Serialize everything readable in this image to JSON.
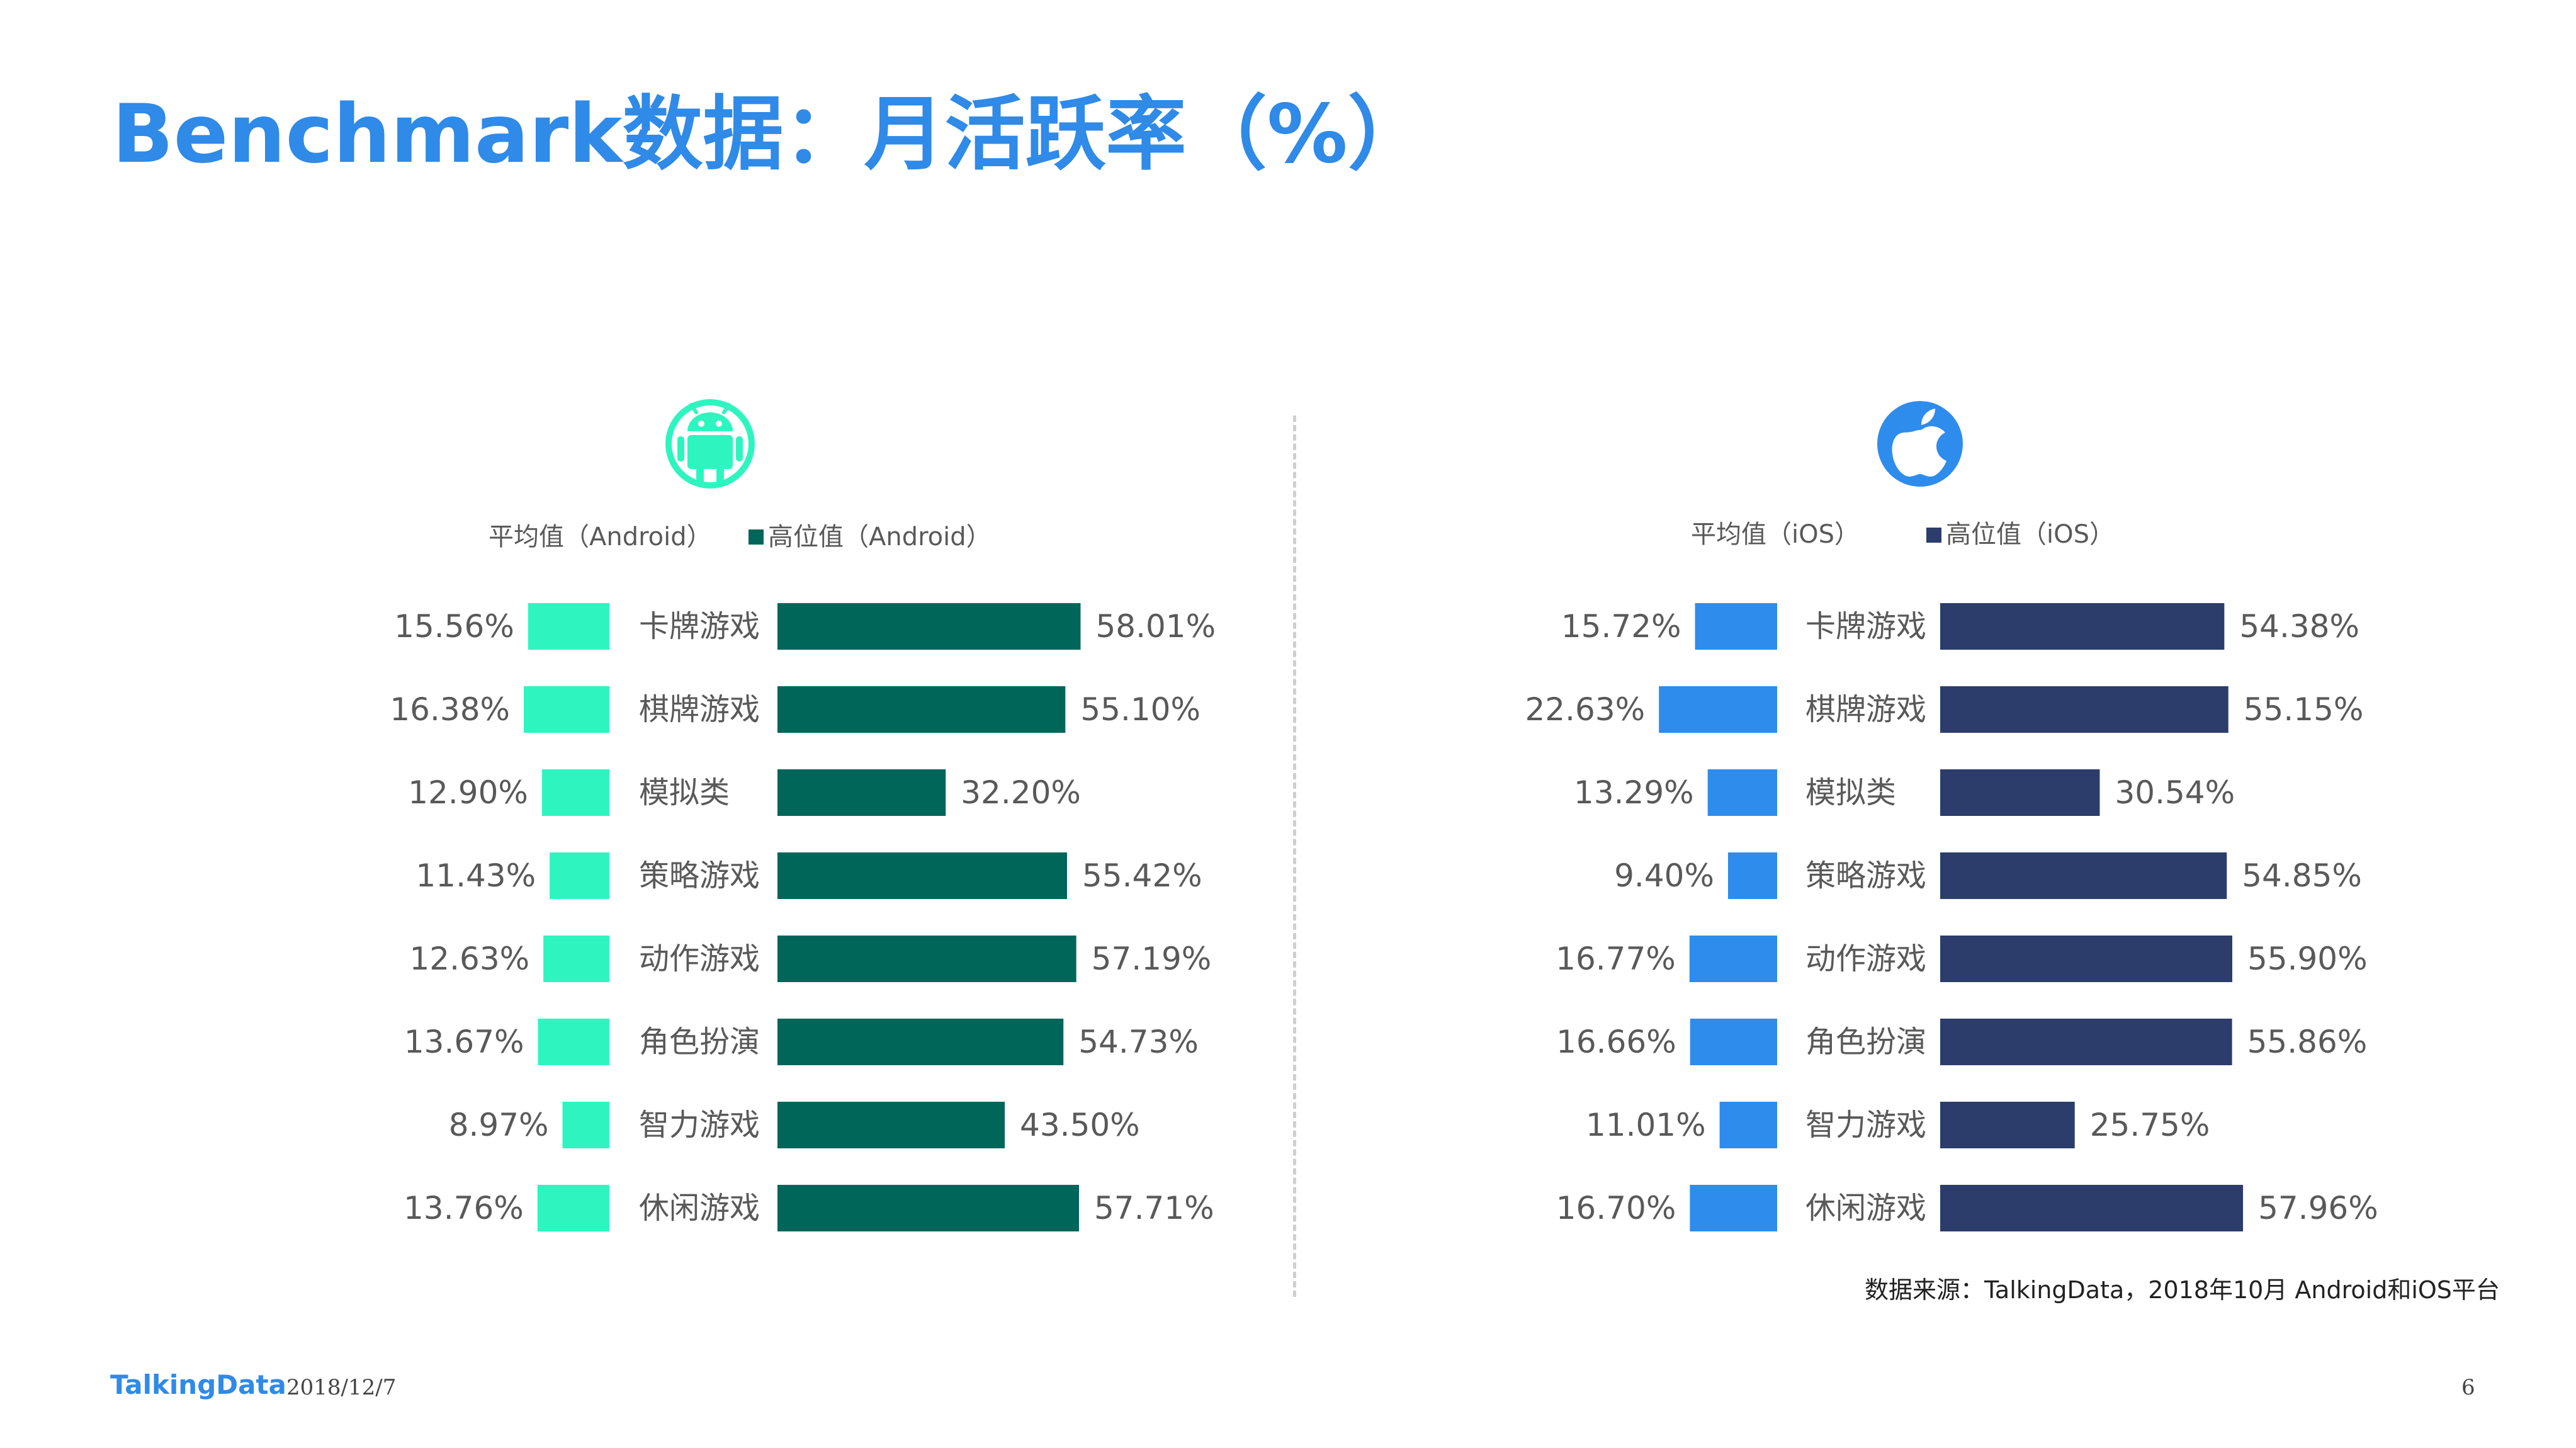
{
  "title": "Benchmark数据：月活跃率（%）",
  "source": "数据来源：TalkingData，2018年10月 Android和iOS平台",
  "footer": {
    "brand": "TalkingData",
    "date": "2018/12/7",
    "page": "6"
  },
  "colors": {
    "title": "#2f8ae8",
    "android_avg": "#2ef5bf",
    "android_high": "#00665a",
    "ios_avg": "#2e8ced",
    "ios_high": "#2c3d6b"
  },
  "icons": {
    "android": "android-robot-icon",
    "ios": "apple-icon"
  },
  "chart_data": [
    {
      "type": "bar",
      "platform": "Android",
      "categories": [
        "卡牌游戏",
        "棋牌游戏",
        "模拟类",
        "策略游戏",
        "动作游戏",
        "角色扮演",
        "智力游戏",
        "休闲游戏"
      ],
      "series": [
        {
          "name": "平均值（Android）",
          "values": [
            15.56,
            16.38,
            12.9,
            11.43,
            12.63,
            13.67,
            8.97,
            13.76
          ],
          "labels": [
            "15.56%",
            "16.38%",
            "12.90%",
            "11.43%",
            "12.63%",
            "13.67%",
            "8.97%",
            "13.76%"
          ]
        },
        {
          "name": "高位值（Android）",
          "values": [
            58.01,
            55.1,
            32.2,
            55.42,
            57.19,
            54.73,
            43.5,
            57.71
          ],
          "labels": [
            "58.01%",
            "55.10%",
            "32.20%",
            "55.42%",
            "57.19%",
            "54.73%",
            "43.50%",
            "57.71%"
          ]
        }
      ],
      "legend": "top"
    },
    {
      "type": "bar",
      "platform": "iOS",
      "categories": [
        "卡牌游戏",
        "棋牌游戏",
        "模拟类",
        "策略游戏",
        "动作游戏",
        "角色扮演",
        "智力游戏",
        "休闲游戏"
      ],
      "series": [
        {
          "name": "平均值（iOS）",
          "values": [
            15.72,
            22.63,
            13.29,
            9.4,
            16.77,
            16.66,
            11.01,
            16.7
          ],
          "labels": [
            "15.72%",
            "22.63%",
            "13.29%",
            "9.40%",
            "16.77%",
            "16.66%",
            "11.01%",
            "16.70%"
          ]
        },
        {
          "name": "高位值（iOS）",
          "values": [
            54.38,
            55.15,
            30.54,
            54.85,
            55.9,
            55.86,
            25.75,
            57.96
          ],
          "labels": [
            "54.38%",
            "55.15%",
            "30.54%",
            "54.85%",
            "55.90%",
            "55.86%",
            "25.75%",
            "57.96%"
          ]
        }
      ],
      "legend": "top"
    }
  ]
}
